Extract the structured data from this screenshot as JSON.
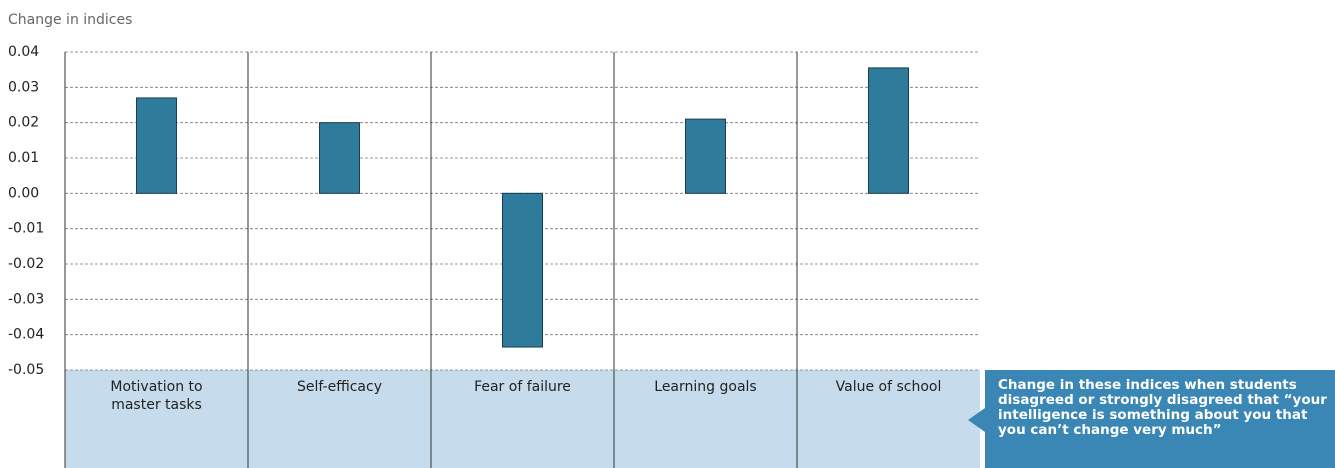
{
  "chart_data": {
    "type": "bar",
    "y_axis_label": "Change in indices",
    "categories": [
      "Motivation to master tasks",
      "Self-efficacy",
      "Fear of failure",
      "Learning goals",
      "Value of school"
    ],
    "values": [
      0.027,
      0.02,
      -0.0435,
      0.021,
      0.0355
    ],
    "color": "#2f7b9c",
    "ylim": [
      -0.05,
      0.04
    ],
    "yticks": [
      -0.05,
      -0.04,
      -0.03,
      -0.02,
      -0.01,
      {
        "value": 0,
        "label": "0.00"
      },
      0.01,
      0.02,
      0.03,
      0.04
    ],
    "grid": true,
    "annotation": "Change in these indices when students disagreed or strongly disagreed that “your intelligence is something about you that you can’t change very much”"
  }
}
